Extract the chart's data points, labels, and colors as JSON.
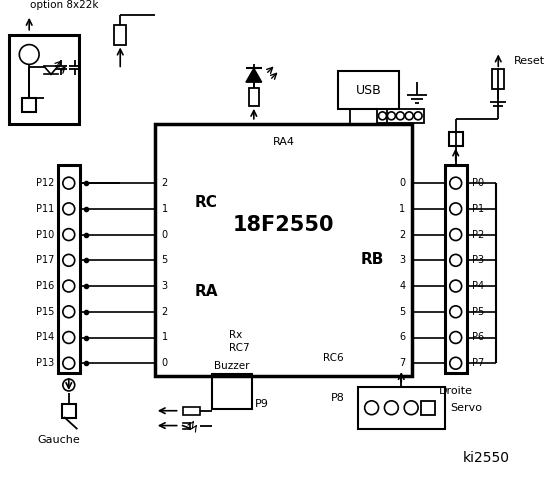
{
  "bg_color": "#ffffff",
  "line_color": "#000000",
  "title": "ki2550",
  "chip_label": "18F2550",
  "chip_sublabel": "RA4",
  "left_connector_pins": [
    "P12",
    "P11",
    "P10",
    "P17",
    "P16",
    "P15",
    "P14",
    "P13"
  ],
  "right_connector_pins": [
    "P0",
    "P1",
    "P2",
    "P3",
    "P4",
    "P5",
    "P6",
    "P7"
  ],
  "rc_pins": [
    "2",
    "1",
    "0",
    "5",
    "3",
    "2",
    "1",
    "0"
  ],
  "rb_pins": [
    "0",
    "1",
    "2",
    "3",
    "4",
    "5",
    "6",
    "7"
  ],
  "left_label": "RC",
  "ra_label": "RA",
  "rb_label": "RB",
  "gauche_label": "Gauche",
  "droite_label": "Droite",
  "buzzer_label": "Buzzer",
  "usb_label": "USB",
  "servo_label": "Servo",
  "reset_label": "Reset",
  "option_label": "option 8x22k",
  "p8_label": "P8",
  "p9_label": "P9",
  "rx_label": "Rx",
  "rc7_label": "RC7",
  "rc6_label": "RC6"
}
